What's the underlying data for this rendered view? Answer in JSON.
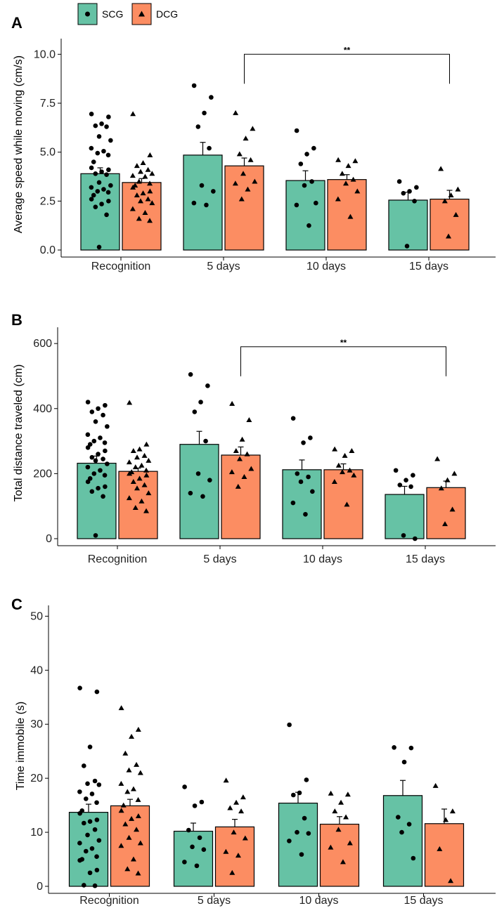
{
  "legend": {
    "items": [
      {
        "label": "SCG",
        "marker": "circle",
        "color": "#66c2a5"
      },
      {
        "label": "DCG",
        "marker": "triangle",
        "color": "#fc8d62"
      }
    ]
  },
  "colors": {
    "scg": "#66c2a5",
    "dcg": "#fc8d62",
    "axis": "#000000"
  },
  "chart_data": [
    {
      "panel": "A",
      "type": "bar",
      "ylabel": "Average speed while moving (cm/s)",
      "ylim": [
        0,
        10.8
      ],
      "yticks": [
        0,
        2.5,
        5,
        7.5,
        10
      ],
      "ytick_labels": [
        "0.0",
        "2.5",
        "5.0",
        "7.5",
        "10.0"
      ],
      "categories": [
        "Recognition",
        "5 days",
        "10 days",
        "15 days"
      ],
      "series": [
        {
          "name": "SCG",
          "values": [
            3.9,
            4.85,
            3.55,
            2.55
          ],
          "errors": [
            0.3,
            0.65,
            0.5,
            0.4
          ],
          "points": [
            [
              6.95,
              6.8,
              6.45,
              6.35,
              6.3,
              5.8,
              5.6,
              5.2,
              5.05,
              4.95,
              4.85,
              4.5,
              4.2,
              4.1,
              4.0,
              3.9,
              3.85,
              3.45,
              3.3,
              3.2,
              3.1,
              3.0,
              2.95,
              2.8,
              2.6,
              2.5,
              2.35,
              2.2,
              1.8,
              0.15
            ],
            [
              8.4,
              7.8,
              7.0,
              6.3,
              5.2,
              3.3,
              3.0,
              2.4,
              2.3
            ],
            [
              6.1,
              5.2,
              4.9,
              4.4,
              3.5,
              3.3,
              2.4,
              2.3,
              1.25
            ],
            [
              3.5,
              3.2,
              3.0,
              2.9,
              2.5,
              0.2
            ]
          ]
        },
        {
          "name": "DCG",
          "values": [
            3.45,
            4.3,
            3.6,
            2.6
          ],
          "errors": [
            0.2,
            0.4,
            0.25,
            0.45
          ],
          "points": [
            [
              6.95,
              4.85,
              4.45,
              4.3,
              4.1,
              4.0,
              3.9,
              3.8,
              3.75,
              3.5,
              3.4,
              3.3,
              3.2,
              3.0,
              2.9,
              2.8,
              2.6,
              2.5,
              2.4,
              2.1,
              1.9,
              1.6,
              1.5
            ],
            [
              7.0,
              6.2,
              5.7,
              4.9,
              4.6,
              3.9,
              3.5,
              3.4,
              3.1,
              2.6
            ],
            [
              4.6,
              4.55,
              4.3,
              3.9,
              3.6,
              3.4,
              3.0,
              2.6,
              1.7
            ],
            [
              4.15,
              3.1,
              2.8,
              2.5,
              1.8,
              0.7
            ]
          ]
        }
      ],
      "significance": {
        "from": 1,
        "to": 3,
        "level": 10.0,
        "label": "**"
      }
    },
    {
      "panel": "B",
      "type": "bar",
      "ylabel": "Total distance traveled (cm)",
      "ylim": [
        0,
        650
      ],
      "yticks": [
        0,
        200,
        400,
        600
      ],
      "ytick_labels": [
        "0",
        "200",
        "400",
        "600"
      ],
      "categories": [
        "Recognition",
        "5 days",
        "10 days",
        "15 days"
      ],
      "series": [
        {
          "name": "SCG",
          "values": [
            232,
            290,
            212,
            136
          ],
          "errors": [
            22,
            40,
            30,
            25
          ],
          "points": [
            [
              420,
              410,
              400,
              390,
              380,
              360,
              345,
              320,
              310,
              300,
              295,
              290,
              280,
              270,
              260,
              250,
              245,
              240,
              230,
              220,
              210,
              200,
              195,
              185,
              175,
              160,
              155,
              145,
              130,
              10
            ],
            [
              505,
              470,
              420,
              390,
              300,
              200,
              180,
              140,
              130
            ],
            [
              370,
              310,
              295,
              200,
              190,
              175,
              145,
              110,
              75
            ],
            [
              210,
              195,
              180,
              165,
              160,
              10,
              0
            ]
          ]
        },
        {
          "name": "DCG",
          "values": [
            207,
            257,
            212,
            157
          ],
          "errors": [
            10,
            25,
            18,
            20
          ],
          "points": [
            [
              418,
              290,
              275,
              270,
              255,
              250,
              240,
              235,
              225,
              220,
              210,
              205,
              200,
              195,
              185,
              175,
              165,
              155,
              140,
              125,
              115,
              95,
              85
            ],
            [
              415,
              365,
              305,
              270,
              260,
              245,
              215,
              205,
              190,
              160
            ],
            [
              275,
              270,
              255,
              225,
              210,
              205,
              195,
              175,
              105
            ],
            [
              245,
              200,
              180,
              155,
              90,
              45
            ]
          ]
        }
      ],
      "significance": {
        "from": 1,
        "to": 3,
        "level": 590,
        "label": "**"
      }
    },
    {
      "panel": "C",
      "type": "bar",
      "ylabel": "Time immobile (s)",
      "ylim": [
        0,
        52
      ],
      "yticks": [
        0,
        10,
        20,
        30,
        40,
        50
      ],
      "ytick_labels": [
        "0",
        "10",
        "20",
        "30",
        "40",
        "50"
      ],
      "categories": [
        "Recognition",
        "5 days",
        "10 days",
        "15 days"
      ],
      "series": [
        {
          "name": "SCG",
          "values": [
            13.7,
            10.2,
            15.4,
            16.8
          ],
          "errors": [
            1.5,
            1.5,
            2.0,
            2.8
          ],
          "points": [
            [
              36.7,
              36.0,
              25.8,
              22.3,
              19.5,
              19.0,
              18.8,
              17.5,
              17.1,
              16.2,
              15.5,
              14.0,
              13.5,
              12.3,
              12.0,
              11.7,
              10.5,
              9.5,
              8.5,
              8.0,
              7.0,
              6.5,
              5.5,
              5.0,
              4.8,
              3.0,
              2.5,
              0.2,
              0.1
            ],
            [
              18.4,
              15.6,
              14.9,
              10.4,
              9.0,
              7.3,
              6.8,
              4.5,
              3.8
            ],
            [
              29.9,
              19.7,
              17.3,
              16.9,
              12.6,
              10.0,
              9.8,
              8.4,
              5.9
            ],
            [
              25.7,
              25.6,
              23.0,
              12.8,
              11.5,
              10.0,
              5.2
            ]
          ]
        },
        {
          "name": "DCG",
          "values": [
            14.9,
            11.0,
            11.5,
            11.6
          ],
          "errors": [
            1.2,
            1.4,
            1.4,
            2.7
          ],
          "points": [
            [
              33.0,
              29.0,
              27.7,
              24.6,
              22.5,
              21.5,
              21.0,
              19.0,
              18.0,
              17.5,
              16.0,
              15.0,
              14.0,
              13.0,
              12.5,
              11.5,
              10.5,
              9.0,
              8.0,
              7.5,
              5.0,
              3.2,
              2.4
            ],
            [
              19.6,
              16.5,
              15.5,
              14.5,
              13.9,
              10.0,
              8.9,
              6.4,
              5.7,
              2.5
            ],
            [
              17.2,
              17.0,
              15.5,
              13.9,
              12.8,
              10.5,
              8.0,
              7.2,
              4.5
            ],
            [
              18.6,
              13.9,
              12.3,
              6.9,
              1.0
            ]
          ]
        }
      ],
      "significance": null
    }
  ]
}
